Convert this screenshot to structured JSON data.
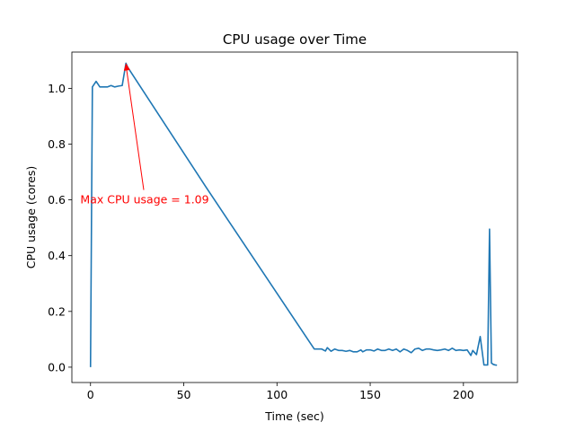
{
  "chart_data": {
    "type": "line",
    "title": "CPU usage over Time",
    "xlabel": "Time (sec)",
    "ylabel": "CPU usage (cores)",
    "xlim": [
      -10,
      229
    ],
    "ylim": [
      -0.055,
      1.13
    ],
    "xticks": [
      0,
      50,
      100,
      150,
      200
    ],
    "yticks": [
      0.0,
      0.2,
      0.4,
      0.6,
      0.8,
      1.0
    ],
    "ytick_labels": [
      "0.0",
      "0.2",
      "0.4",
      "0.6",
      "0.8",
      "1.0"
    ],
    "grid": false,
    "series": [
      {
        "color": "#1f77b4",
        "x": [
          0,
          1,
          3,
          5,
          7,
          9,
          11,
          13,
          15,
          17,
          19,
          20,
          62,
          120,
          122,
          124,
          126,
          127,
          129,
          131,
          133,
          135,
          137,
          139,
          141,
          143,
          145,
          146,
          148,
          150,
          152,
          154,
          156,
          158,
          160,
          162,
          164,
          166,
          168,
          170,
          172,
          174,
          176,
          178,
          180,
          182,
          184,
          186,
          188,
          190,
          192,
          194,
          196,
          198,
          200,
          202,
          204,
          205,
          207,
          209,
          211,
          213,
          214,
          215,
          216,
          217,
          218
        ],
        "y": [
          0.0,
          1.005,
          1.025,
          1.005,
          1.005,
          1.005,
          1.01,
          1.005,
          1.008,
          1.01,
          1.09,
          1.075,
          0.645,
          0.065,
          0.065,
          0.065,
          0.058,
          0.07,
          0.057,
          0.065,
          0.06,
          0.06,
          0.057,
          0.06,
          0.055,
          0.055,
          0.062,
          0.055,
          0.062,
          0.062,
          0.058,
          0.065,
          0.06,
          0.06,
          0.065,
          0.06,
          0.065,
          0.055,
          0.065,
          0.06,
          0.052,
          0.065,
          0.068,
          0.06,
          0.065,
          0.065,
          0.062,
          0.06,
          0.062,
          0.065,
          0.06,
          0.068,
          0.06,
          0.062,
          0.06,
          0.062,
          0.042,
          0.06,
          0.045,
          0.11,
          0.008,
          0.008,
          0.495,
          0.015,
          0.01,
          0.008,
          0.007
        ]
      }
    ],
    "annotation": {
      "text": "Max CPU usage = 1.09",
      "color": "#ff0000",
      "point": [
        19,
        1.09
      ],
      "text_pos": [
        30,
        0.6
      ]
    }
  }
}
